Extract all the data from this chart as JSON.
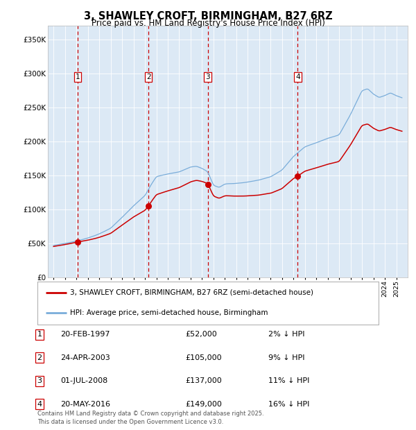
{
  "title": "3, SHAWLEY CROFT, BIRMINGHAM, B27 6RZ",
  "subtitle": "Price paid vs. HM Land Registry's House Price Index (HPI)",
  "plot_bg": "#dce9f5",
  "fig_bg": "#ffffff",
  "ylim": [
    0,
    370000
  ],
  "yticks": [
    0,
    50000,
    100000,
    150000,
    200000,
    250000,
    300000,
    350000
  ],
  "ytick_labels": [
    "£0",
    "£50K",
    "£100K",
    "£150K",
    "£200K",
    "£250K",
    "£300K",
    "£350K"
  ],
  "xlim_left": 1994.5,
  "xlim_right": 2026.0,
  "sale_dates_num": [
    1997.12,
    2003.31,
    2008.5,
    2016.38
  ],
  "sale_prices": [
    52000,
    105000,
    137000,
    149000
  ],
  "sale_labels": [
    "1",
    "2",
    "3",
    "4"
  ],
  "sale_info": [
    [
      "1",
      "20-FEB-1997",
      "£52,000",
      "2% ↓ HPI"
    ],
    [
      "2",
      "24-APR-2003",
      "£105,000",
      "9% ↓ HPI"
    ],
    [
      "3",
      "01-JUL-2008",
      "£137,000",
      "11% ↓ HPI"
    ],
    [
      "4",
      "20-MAY-2016",
      "£149,000",
      "16% ↓ HPI"
    ]
  ],
  "red_line_color": "#cc0000",
  "blue_line_color": "#7aadda",
  "vline_color": "#cc0000",
  "legend1": "3, SHAWLEY CROFT, BIRMINGHAM, B27 6RZ (semi-detached house)",
  "legend2": "HPI: Average price, semi-detached house, Birmingham",
  "footer": "Contains HM Land Registry data © Crown copyright and database right 2025.\nThis data is licensed under the Open Government Licence v3.0.",
  "title_fontsize": 10.5,
  "subtitle_fontsize": 8.5
}
